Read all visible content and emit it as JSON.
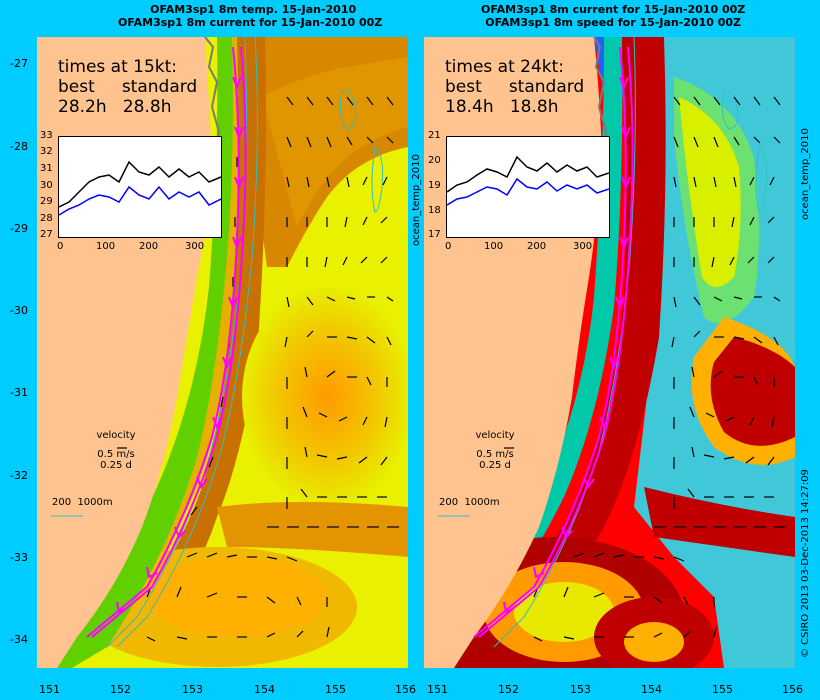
{
  "colors": {
    "background": "#00ccff",
    "land": "#ffc38f",
    "current_path": "#ff00ff",
    "inset_best": "#0000ff",
    "inset_standard": "#000000",
    "isobath": "#30c0c0"
  },
  "left_panel": {
    "title_line1": "OFAM3sp1 8m temp. 15-Jan-2010",
    "title_line2": "OFAM3sp1 8m current for 15-Jan-2010 00Z",
    "times_heading": "times at 15kt:",
    "best_label": "best",
    "standard_label": "standard",
    "best_value": "28.2h",
    "standard_value": "28.8h",
    "inset_y_ticks": [
      "33",
      "32",
      "31",
      "30",
      "29",
      "28",
      "27"
    ],
    "inset_x_ticks": [
      "0",
      "100",
      "200",
      "300"
    ],
    "side_label": "ocean_temp_2010"
  },
  "right_panel": {
    "title_line1": "OFAM3sp1 8m current for 15-Jan-2010 00Z",
    "title_line2": "OFAM3sp1 8m speed for 15-Jan-2010 00Z",
    "times_heading": "times at 24kt:",
    "best_label": "best",
    "standard_label": "standard",
    "best_value": "18.4h",
    "standard_value": "18.8h",
    "inset_y_ticks": [
      "21",
      "20",
      "19",
      "18",
      "17"
    ],
    "inset_x_ticks": [
      "0",
      "100",
      "200",
      "300"
    ],
    "side_label": "ocean_temp_2010"
  },
  "velocity_legend": {
    "title": "velocity",
    "speed": "0.5 m/s",
    "duration": "0.25 d"
  },
  "isobath_legend": "200  1000m",
  "latitude_ticks": [
    "-27",
    "-28",
    "-29",
    "-30",
    "-31",
    "-32",
    "-33",
    "-34"
  ],
  "longitude_ticks": [
    "151",
    "152",
    "153",
    "154",
    "155",
    "156"
  ],
  "credit": "© CSIRO 2013   03-Dec-2013 14:27:09"
}
